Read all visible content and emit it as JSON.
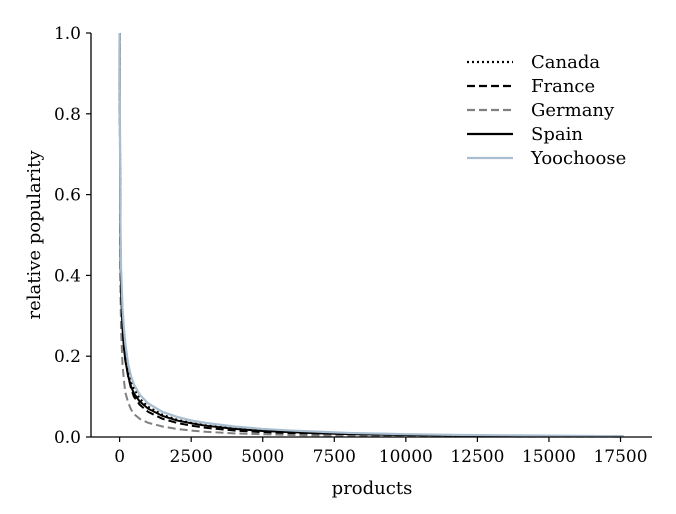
{
  "chart_data": {
    "type": "line",
    "xlabel": "products",
    "ylabel": "relative popularity",
    "xlim": [
      -1000,
      18600
    ],
    "ylim": [
      0,
      1.0
    ],
    "xticks": [
      0,
      2500,
      5000,
      7500,
      10000,
      12500,
      15000,
      17500
    ],
    "yticks": [
      0.0,
      0.2,
      0.4,
      0.6,
      0.8,
      1.0
    ],
    "xtick_labels": [
      "0",
      "2500",
      "5000",
      "7500",
      "10000",
      "12500",
      "15000",
      "17500"
    ],
    "ytick_labels": [
      "0.0",
      "0.2",
      "0.4",
      "0.6",
      "0.8",
      "1.0"
    ],
    "grid": false,
    "legend_position": "top-right",
    "series": [
      {
        "name": "Canada",
        "style": "dotted",
        "color": "#000000",
        "x": [
          0,
          25,
          50,
          100,
          150,
          200,
          300,
          400,
          500,
          700,
          1000,
          1500,
          2000,
          2500,
          3000,
          4000,
          5000,
          6000,
          7000,
          8000,
          10000,
          12000,
          14000,
          16000,
          17600
        ],
        "y": [
          1.0,
          0.52,
          0.4,
          0.3,
          0.25,
          0.21,
          0.17,
          0.14,
          0.12,
          0.095,
          0.075,
          0.055,
          0.043,
          0.035,
          0.029,
          0.021,
          0.016,
          0.012,
          0.01,
          0.008,
          0.005,
          0.004,
          0.003,
          0.002,
          0.002
        ]
      },
      {
        "name": "France",
        "style": "dashed",
        "color": "#000000",
        "x": [
          0,
          25,
          50,
          100,
          150,
          200,
          300,
          400,
          500,
          700,
          1000,
          1500,
          2000,
          2500,
          3000,
          4000,
          5000,
          6000,
          7000,
          8000,
          10000,
          12000,
          14000,
          16000,
          17600
        ],
        "y": [
          1.0,
          0.5,
          0.38,
          0.28,
          0.23,
          0.19,
          0.15,
          0.12,
          0.1,
          0.08,
          0.062,
          0.045,
          0.035,
          0.028,
          0.023,
          0.016,
          0.012,
          0.009,
          0.007,
          0.006,
          0.004,
          0.003,
          0.002,
          0.002,
          0.001
        ]
      },
      {
        "name": "Germany",
        "style": "dashed",
        "color": "#808080",
        "x": [
          0,
          25,
          50,
          100,
          150,
          200,
          300,
          400,
          500,
          700,
          1000,
          1500,
          2000,
          2500,
          3000,
          4000,
          5000,
          6000,
          7000,
          8000,
          10000,
          12000,
          14000,
          16000,
          17600
        ],
        "y": [
          1.0,
          0.38,
          0.27,
          0.18,
          0.14,
          0.11,
          0.085,
          0.068,
          0.057,
          0.045,
          0.035,
          0.026,
          0.02,
          0.016,
          0.013,
          0.009,
          0.007,
          0.005,
          0.004,
          0.003,
          0.002,
          0.002,
          0.001,
          0.001,
          0.001
        ]
      },
      {
        "name": "Spain",
        "style": "solid",
        "color": "#000000",
        "x": [
          0,
          25,
          50,
          100,
          150,
          200,
          300,
          400,
          500,
          700,
          1000,
          1500,
          2000,
          2500,
          3000,
          4000,
          5000,
          6000,
          7000,
          8000,
          10000,
          12000,
          14000,
          16000,
          17600
        ],
        "y": [
          1.0,
          0.48,
          0.36,
          0.27,
          0.22,
          0.19,
          0.15,
          0.125,
          0.108,
          0.088,
          0.07,
          0.052,
          0.041,
          0.034,
          0.028,
          0.02,
          0.015,
          0.012,
          0.009,
          0.007,
          0.005,
          0.004,
          0.003,
          0.002,
          0.002
        ]
      },
      {
        "name": "Yoochoose",
        "style": "solid",
        "color": "#a9bdd0",
        "x": [
          0,
          25,
          50,
          100,
          150,
          200,
          300,
          400,
          500,
          700,
          1000,
          1500,
          2000,
          2500,
          3000,
          4000,
          5000,
          6000,
          7000,
          8000,
          10000,
          12000,
          14000,
          16000,
          17600
        ],
        "y": [
          1.0,
          0.55,
          0.42,
          0.32,
          0.27,
          0.23,
          0.18,
          0.15,
          0.13,
          0.105,
          0.083,
          0.062,
          0.05,
          0.041,
          0.035,
          0.026,
          0.02,
          0.016,
          0.013,
          0.01,
          0.007,
          0.005,
          0.004,
          0.003,
          0.002
        ]
      }
    ]
  }
}
